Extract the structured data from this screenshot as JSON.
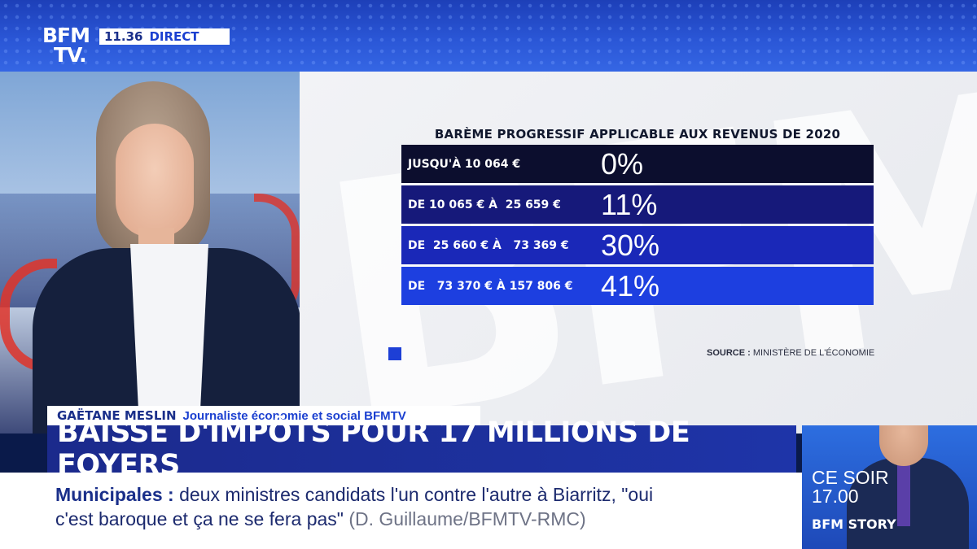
{
  "channel": {
    "logo_line1": "BFM",
    "logo_line2": "TV.",
    "time": "11.36",
    "live_label": "DIRECT"
  },
  "graphic": {
    "title": "BARÈME PROGRESSIF APPLICABLE AUX REVENUS DE 2020",
    "rows": [
      {
        "label": "JUSQU'À 10 064 €",
        "rate": "0%",
        "color": "#0c0e2e"
      },
      {
        "label": "DE 10 065 € À  25 659 €",
        "rate": "11%",
        "color": "#16197a"
      },
      {
        "label": "DE  25 660 € À   73 369 €",
        "rate": "30%",
        "color": "#1a28b8"
      },
      {
        "label": "DE   73 370 € À 157 806 €",
        "rate": "41%",
        "color": "#1d3fe0"
      }
    ],
    "source_label": "SOURCE :",
    "source_text": "MINISTÈRE DE L'ÉCONOMIE"
  },
  "strap": {
    "name": "GAËTANE MESLIN",
    "role": "Journaliste économie et social BFMTV"
  },
  "headline": "BAISSE D'IMPÔTS POUR 17 MILLIONS DE FOYERS",
  "ticker": {
    "tag": "Municipales  :",
    "text_line1": " deux ministres candidats l'un contre l'autre à Biarritz, \"oui",
    "text_line2": "c'est baroque et ça ne se fera pas\"",
    "source": " (D. Guillaume/BFMTV-RMC)"
  },
  "promo": {
    "line1": "CE SOIR",
    "line2": "17.00",
    "show": "BFM STORY"
  }
}
